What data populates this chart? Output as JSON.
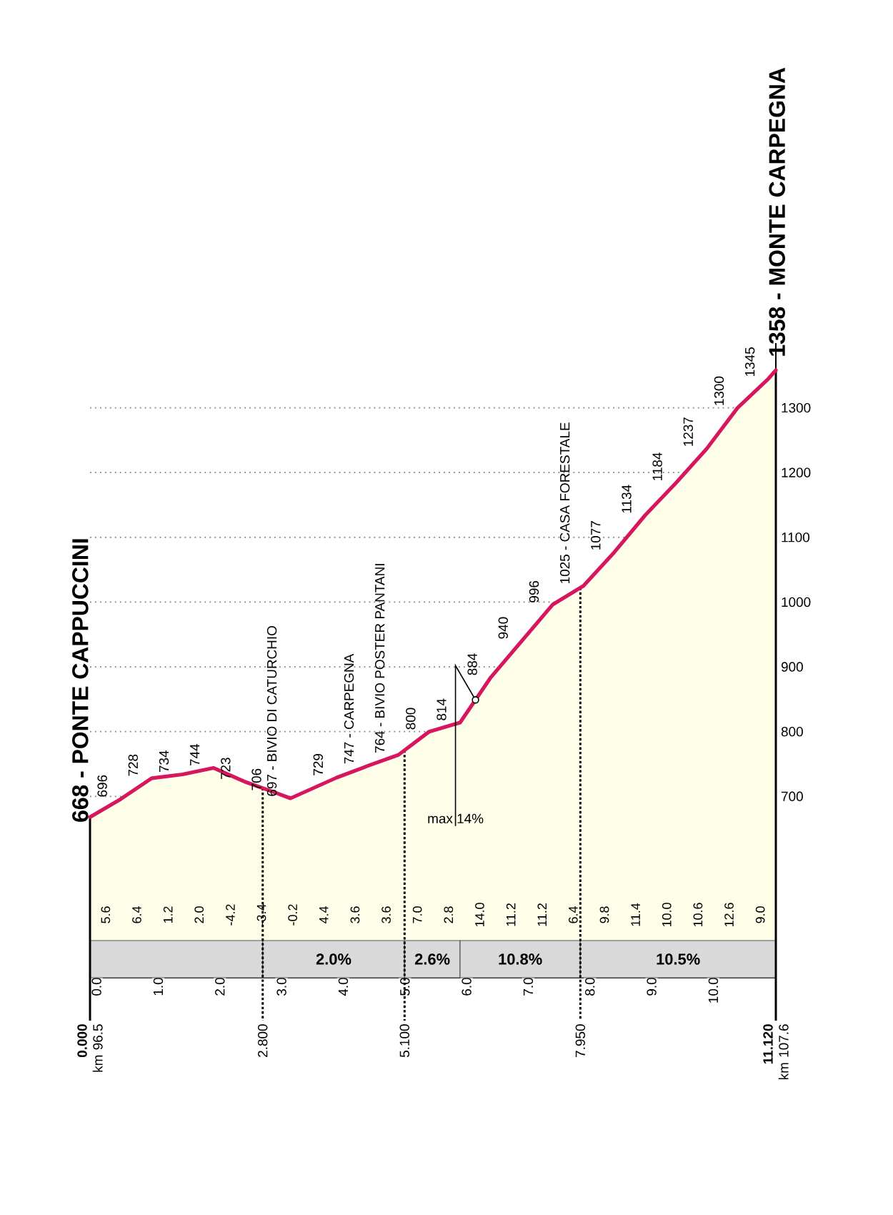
{
  "chart_data": {
    "type": "area",
    "x": [
      0,
      0.5,
      1,
      1.5,
      2,
      2.5,
      3,
      3.25,
      4,
      4.5,
      5,
      5.5,
      6,
      6.5,
      7,
      7.5,
      8,
      8.5,
      9,
      9.5,
      10,
      10.5,
      11,
      11.12
    ],
    "series": [
      {
        "color": "#d6165f",
        "values": [
          668,
          696,
          728,
          734,
          744,
          723,
          706,
          697,
          729,
          747,
          764,
          800,
          814,
          884,
          940,
          996,
          1025,
          1077,
          1134,
          1184,
          1237,
          1300,
          1345,
          1358
        ],
        "value_labels": [
          "668 - PONTE CAPPUCCINI",
          "696",
          "728",
          "734",
          "744",
          "723",
          "706",
          "697 - BIVIO DI CATURCHIO",
          "729",
          "747 - CARPEGNA",
          "764 - BIVIO POSTER PANTANI",
          "800",
          "814",
          "884",
          "940",
          "996",
          "1025 - CASA FORESTALE",
          "1077",
          "1134",
          "1184",
          "1237",
          "1300",
          "1345",
          "1358 - MONTE CARPEGNA"
        ]
      }
    ],
    "xlim": [
      0,
      11.12
    ],
    "ylim": [
      420,
      1400
    ],
    "xticks": [
      {
        "value": 0,
        "label": "0.0"
      },
      {
        "value": 1,
        "label": "1.0"
      },
      {
        "value": 2,
        "label": "2.0"
      },
      {
        "value": 3,
        "label": "3.0"
      },
      {
        "value": 4,
        "label": "4.0"
      },
      {
        "value": 5,
        "label": "5.0"
      },
      {
        "value": 6,
        "label": "6.0"
      },
      {
        "value": 7,
        "label": "7.0"
      },
      {
        "value": 8,
        "label": "8.0"
      },
      {
        "value": 9,
        "label": "9.0"
      },
      {
        "value": 10,
        "label": "10.0"
      }
    ],
    "yticks": [
      700,
      800,
      900,
      1000,
      1100,
      1200,
      1300
    ],
    "grid": "y",
    "bands": [
      {
        "axis": "x",
        "from": 0,
        "to": 2.8,
        "color": "#d9d9d9"
      },
      {
        "axis": "x",
        "from": 2.8,
        "to": 5.1,
        "label": "2.0%",
        "color": "#d9d9d9"
      },
      {
        "axis": "x",
        "from": 5.1,
        "to": 6,
        "label": "2.6%",
        "color": "#d9d9d9"
      },
      {
        "axis": "x",
        "from": 6,
        "to": 7.95,
        "label": "10.8%",
        "color": "#d9d9d9"
      },
      {
        "axis": "x",
        "from": 7.95,
        "to": 11.12,
        "label": "10.5%",
        "color": "#d9d9d9"
      }
    ],
    "ref_lines": [
      {
        "axis": "x",
        "value": 0,
        "label": "**0.000** km 96.5",
        "line_style": "solid"
      },
      {
        "axis": "x",
        "value": 2.8,
        "label": "2.800",
        "line_style": "dotted"
      },
      {
        "axis": "x",
        "value": 5.1,
        "label": "5.100",
        "line_style": "dotted"
      },
      {
        "axis": "x",
        "value": 7.95,
        "label": "7.950",
        "line_style": "dotted"
      },
      {
        "axis": "x",
        "value": 11.12,
        "label": "**11.120** km 107.6",
        "line_style": "solid"
      }
    ],
    "annotations": [
      "5.6",
      "6.4",
      "1.2",
      "2.0",
      "-4.2",
      "-3.4",
      "-0.2",
      "4.4",
      "3.6",
      "3.6",
      "7.0",
      "2.8",
      "14.0",
      "11.2",
      "11.2",
      "6.4",
      "9.8",
      "11.4",
      "10.0",
      "10.6",
      "12.6",
      "9.0",
      {
        "text": "max 14%",
        "x": 6.25,
        "y": 849
      }
    ]
  }
}
